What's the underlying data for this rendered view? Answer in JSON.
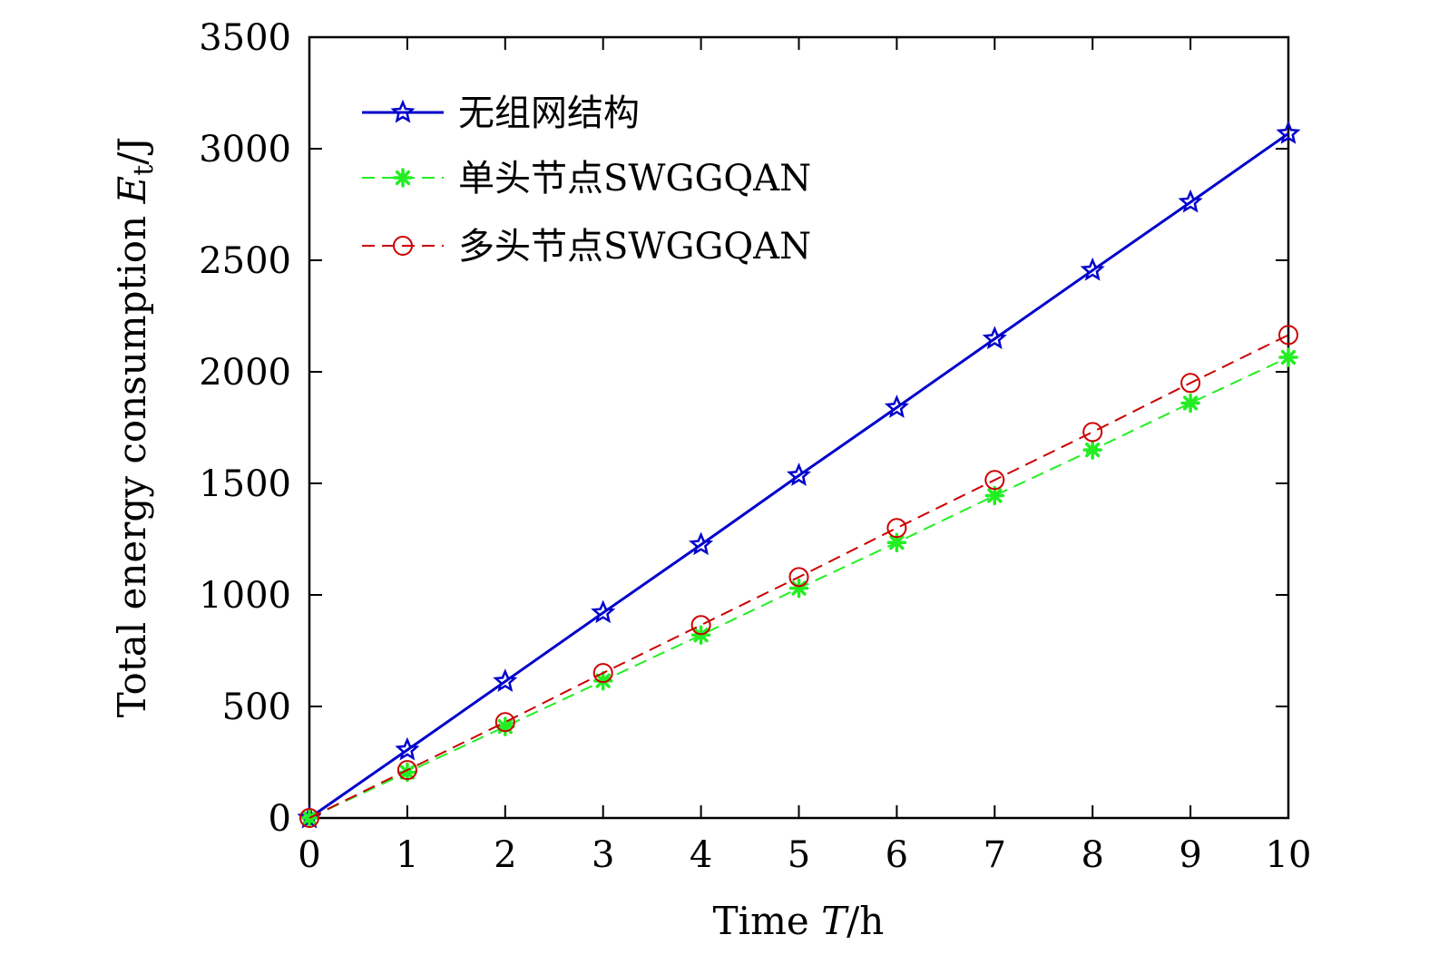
{
  "chart_data": {
    "type": "line",
    "xlabel_parts": [
      "Time ",
      "T",
      "/h"
    ],
    "ylabel_parts": [
      "Total energy consumption ",
      "E",
      "t",
      "/J"
    ],
    "x": [
      0,
      1,
      2,
      3,
      4,
      5,
      6,
      7,
      8,
      9,
      10
    ],
    "xlim": [
      0,
      10
    ],
    "ylim": [
      0,
      3500
    ],
    "xticks": [
      "0",
      "1",
      "2",
      "3",
      "4",
      "5",
      "6",
      "7",
      "8",
      "9",
      "10"
    ],
    "yticks": [
      "0",
      "500",
      "1000",
      "1500",
      "2000",
      "2500",
      "3000",
      "3500"
    ],
    "grid": false,
    "legend_position": "top-left",
    "series": [
      {
        "name": "无组网结构",
        "color": "#0000cc",
        "line_style": "solid",
        "marker": "star",
        "values": [
          0,
          305,
          612,
          920,
          1225,
          1535,
          1840,
          2148,
          2455,
          2760,
          3068
        ]
      },
      {
        "name": "单头节点SWGGQAN",
        "color": "#22ee22",
        "line_style": "dashed",
        "marker": "asterisk",
        "values": [
          0,
          205,
          410,
          615,
          820,
          1030,
          1235,
          1445,
          1650,
          1860,
          2065
        ]
      },
      {
        "name": "多头节点SWGGQAN",
        "color": "#cc0000",
        "line_style": "dashed",
        "marker": "circle",
        "values": [
          0,
          215,
          430,
          650,
          865,
          1080,
          1300,
          1515,
          1730,
          1950,
          2165
        ]
      }
    ]
  }
}
